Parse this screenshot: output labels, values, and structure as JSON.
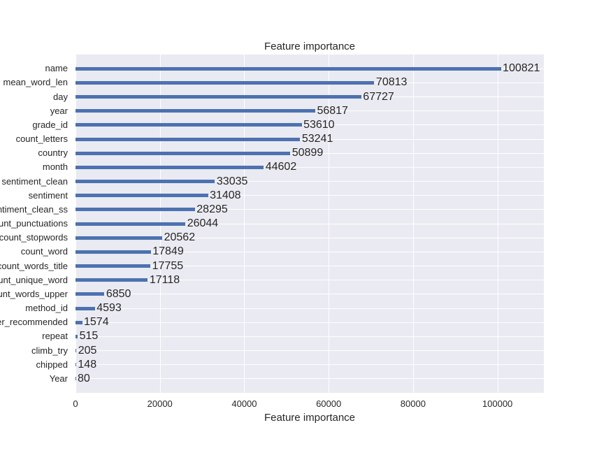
{
  "chart_data": {
    "type": "bar",
    "orientation": "horizontal",
    "title": "Feature importance",
    "xlabel": "Feature importance",
    "ylabel": "",
    "categories": [
      "name",
      "mean_word_len",
      "day",
      "year",
      "grade_id",
      "count_letters",
      "country",
      "month",
      "sentiment_clean",
      "sentiment",
      "sentiment_clean_ss",
      "count_punctuations",
      "count_stopwords",
      "count_word",
      "count_words_title",
      "count_unique_word",
      "count_words_upper",
      "method_id",
      "user_recommended",
      "repeat",
      "climb_try",
      "chipped",
      "Year"
    ],
    "values": [
      100821,
      70813,
      67727,
      56817,
      53610,
      53241,
      50899,
      44602,
      33035,
      31408,
      28295,
      26044,
      20562,
      17849,
      17755,
      17118,
      6850,
      4593,
      1574,
      515,
      205,
      148,
      80
    ],
    "bar_value_labels": true,
    "x_ticks": [
      0,
      20000,
      40000,
      60000,
      80000,
      100000
    ],
    "xlim": [
      0,
      111000
    ],
    "grid": true,
    "legend_position": "none",
    "colors": {
      "bar": "#4c72b0",
      "plot_background": "#eaeaf2",
      "grid": "#ffffff",
      "text": "#262626",
      "figure_background": "#ffffff"
    }
  }
}
